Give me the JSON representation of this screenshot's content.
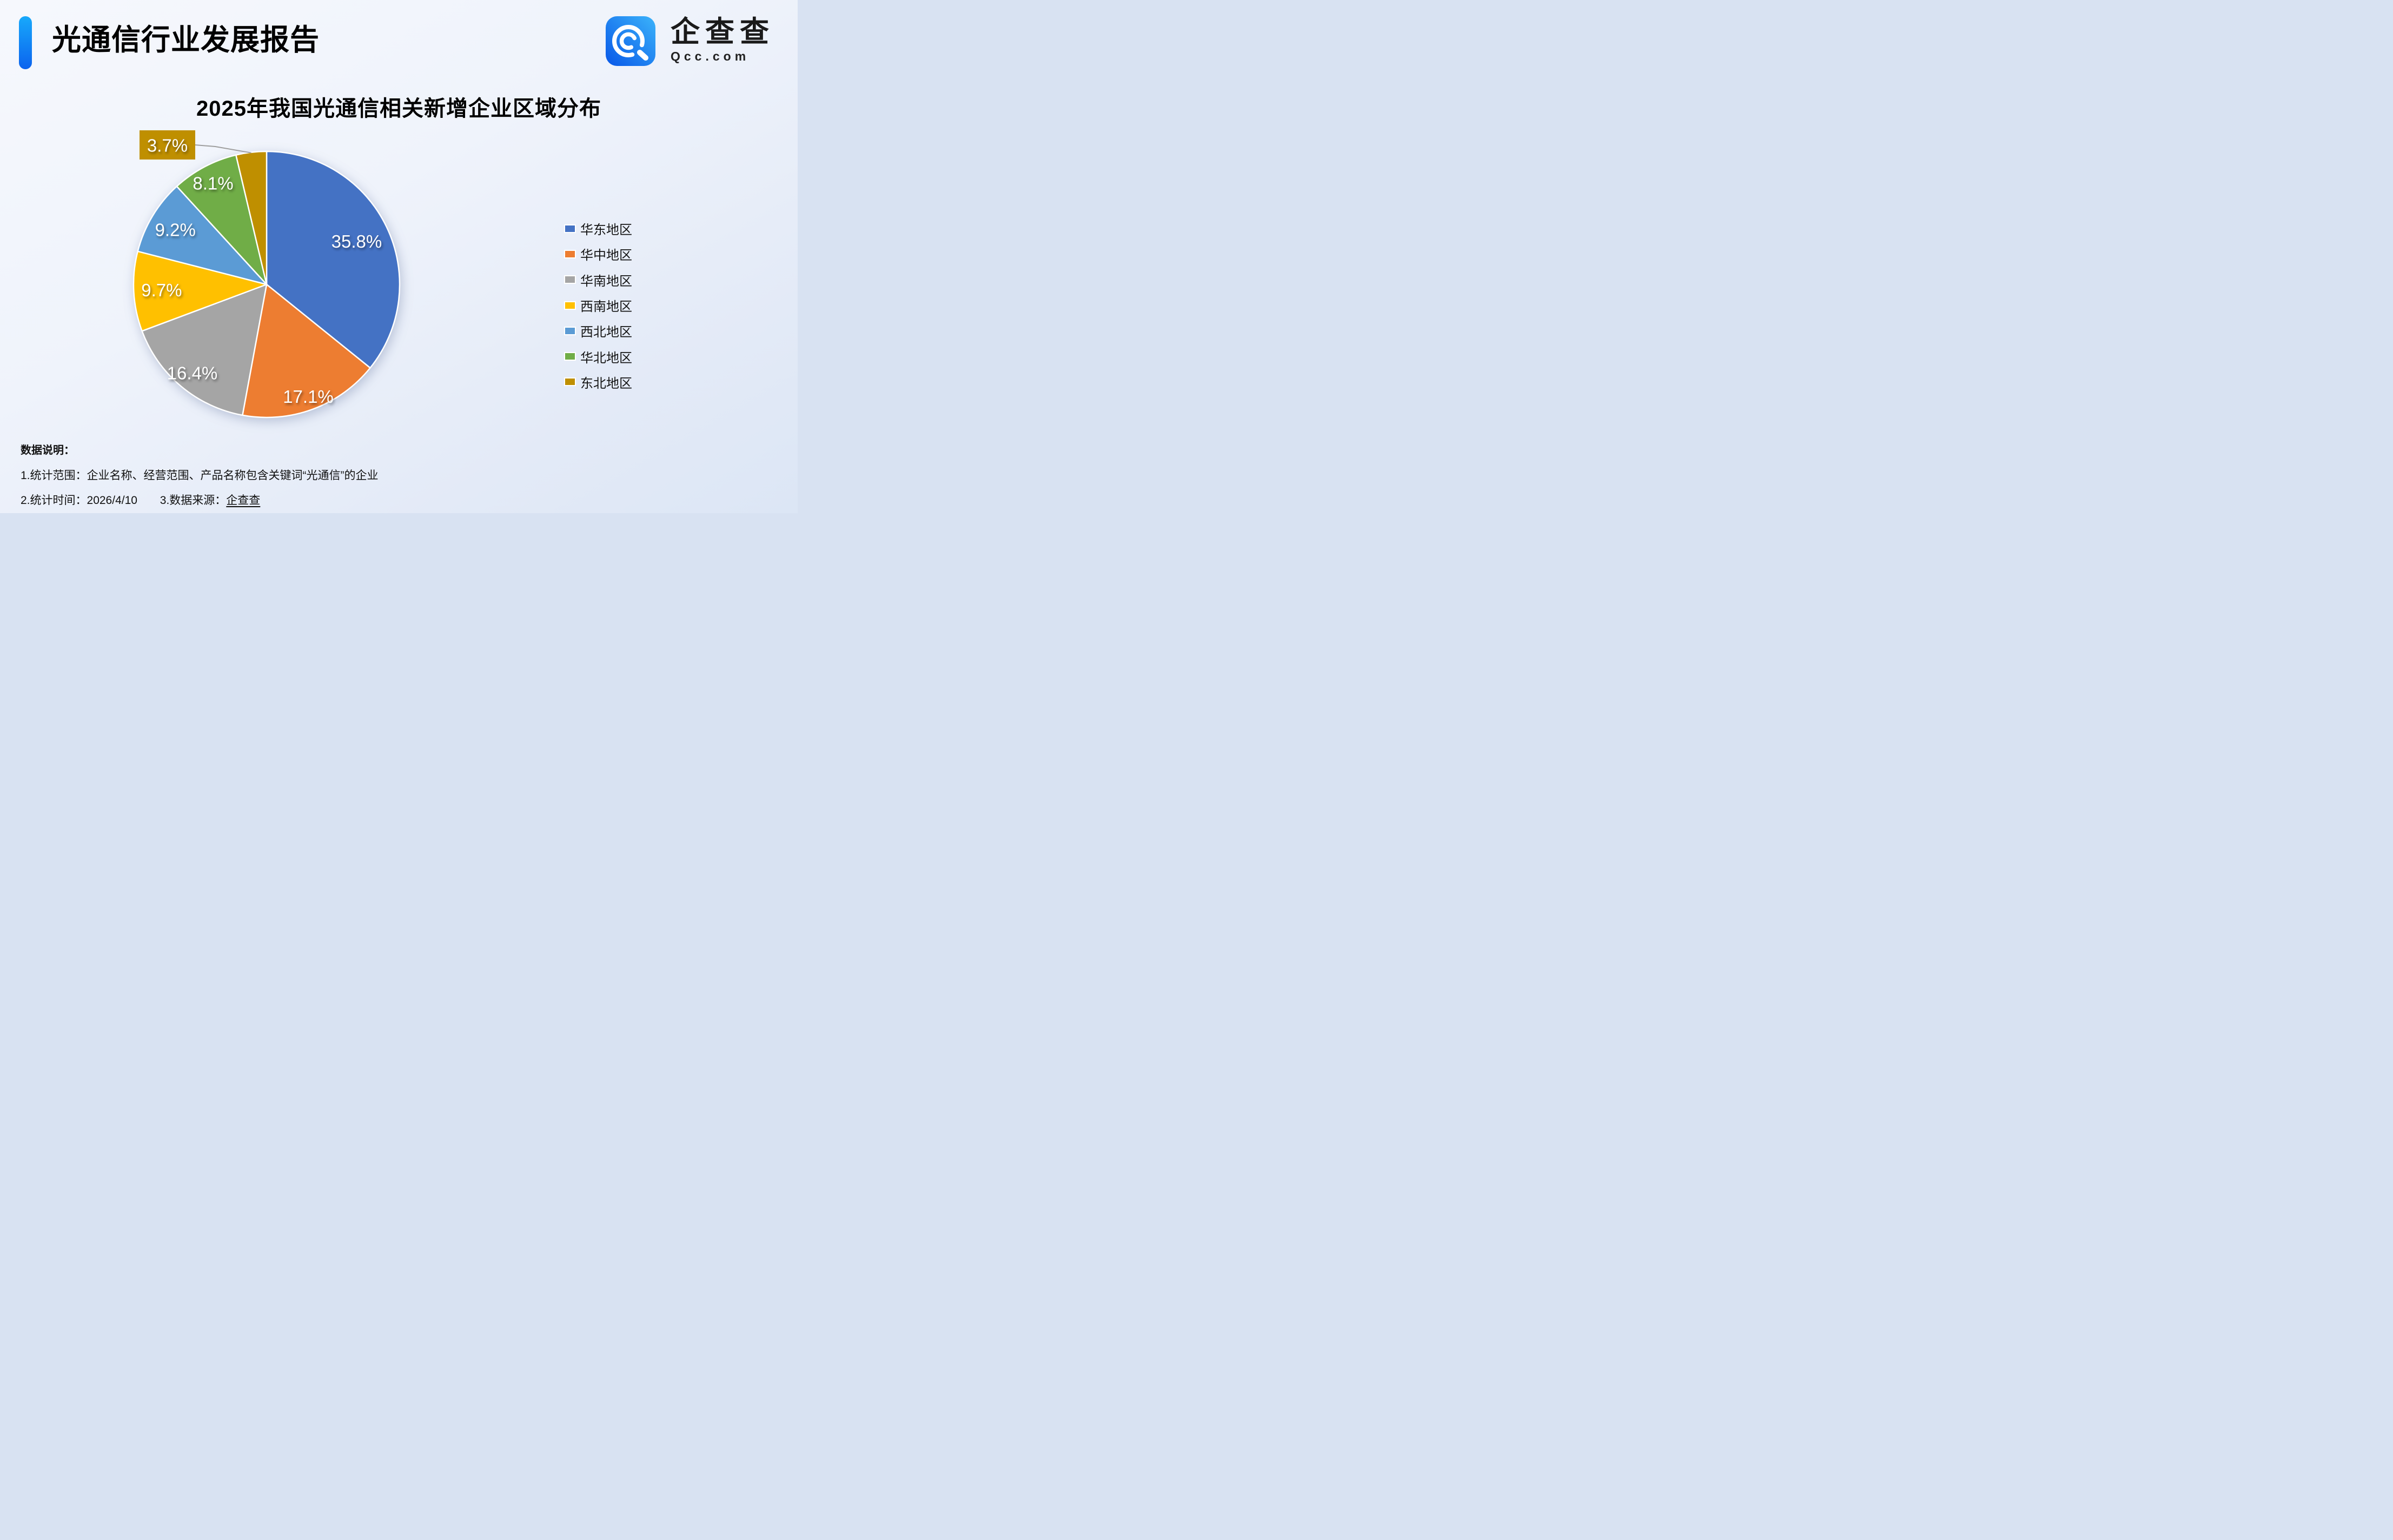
{
  "header": {
    "title": "光通信行业发展报告",
    "accent_gradient": [
      "#18A9FB",
      "#0B63EE"
    ]
  },
  "logo": {
    "brand_name": "企查查",
    "domain": "Qcc.com",
    "icon": "qcc-magnifier-q-icon",
    "icon_gradient": [
      "#0857E8",
      "#3BB3FA"
    ]
  },
  "chart_data": {
    "type": "pie",
    "title": "2025年我国光通信相关新增企业区域分布",
    "legend_position": "right",
    "start_angle_deg": 0,
    "direction": "clockwise",
    "unit": "%",
    "slices": [
      {
        "label": "华东地区",
        "value": 35.8,
        "display": "35.8%",
        "color": "#4472C4",
        "label_radius": 0.75
      },
      {
        "label": "华中地区",
        "value": 17.1,
        "display": "17.1%",
        "color": "#ED7D31",
        "label_radius": 0.9
      },
      {
        "label": "华南地区",
        "value": 16.4,
        "display": "16.4%",
        "color": "#A5A5A5",
        "label_radius": 0.87
      },
      {
        "label": "西南地区",
        "value": 9.7,
        "display": "9.7%",
        "color": "#FFC000",
        "label_radius": 0.79
      },
      {
        "label": "西北地区",
        "value": 9.2,
        "display": "9.2%",
        "color": "#5B9BD5",
        "label_radius": 0.8
      },
      {
        "label": "华北地区",
        "value": 8.1,
        "display": "8.1%",
        "color": "#70AD47",
        "label_radius": 0.86
      },
      {
        "label": "东北地区",
        "value": 3.7,
        "display": "3.7%",
        "color": "#BF8F00",
        "label_radius": 0,
        "callout": true
      }
    ]
  },
  "footnotes": {
    "heading": "数据说明：",
    "line1": "1.统计范围：企业名称、经营范围、产品名称包含关键词“光通信”的企业",
    "line2": "2.统计时间：2026/4/10",
    "line3_prefix": "3.数据来源：",
    "line3_brand": "企查查"
  }
}
